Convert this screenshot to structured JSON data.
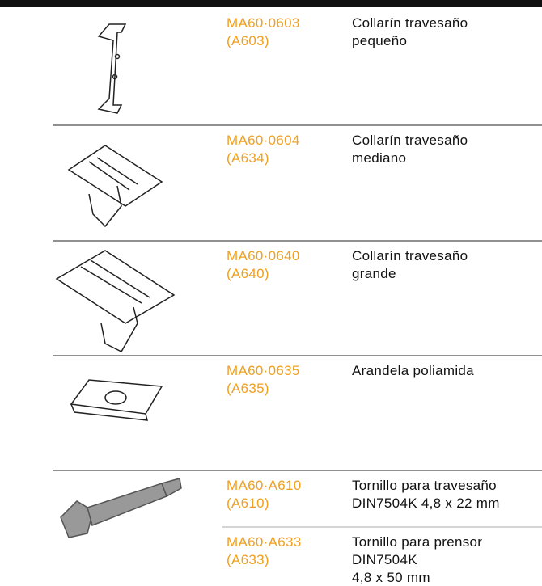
{
  "rows": [
    {
      "items": [
        {
          "code": "MA60·0603",
          "alt": "(A603)",
          "desc": [
            "Collarín travesaño",
            "pequeño"
          ]
        }
      ]
    },
    {
      "items": [
        {
          "code": "MA60·0604",
          "alt": "(A634)",
          "desc": [
            "Collarín travesaño",
            "mediano"
          ]
        }
      ]
    },
    {
      "items": [
        {
          "code": "MA60·0640",
          "alt": "(A640)",
          "desc": [
            "Collarín travesaño",
            "grande"
          ]
        }
      ]
    },
    {
      "items": [
        {
          "code": "MA60·0635",
          "alt": "(A635)",
          "desc": [
            "Arandela poliamida"
          ]
        }
      ]
    },
    {
      "items": [
        {
          "code": "MA60·A610",
          "alt": "(A610)",
          "desc": [
            "Tornillo para travesaño",
            "DIN7504K 4,8 x 22 mm"
          ]
        },
        {
          "code": "MA60·A633",
          "alt": "(A633)",
          "desc": [
            "Tornillo para prensor",
            "DIN7504K",
            "4,8 x 50 mm"
          ]
        }
      ]
    }
  ]
}
